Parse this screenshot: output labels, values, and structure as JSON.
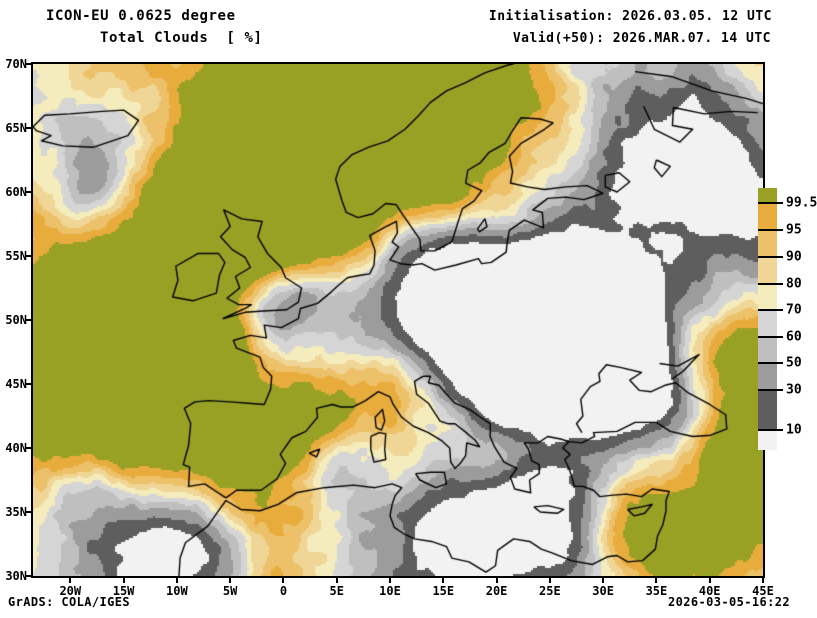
{
  "header": {
    "model_line": "ICON-EU 0.0625 degree",
    "variable_line": "Total Clouds  [ %]",
    "init_line": "Initialisation: 2026.03.05. 12 UTC",
    "valid_line": "Valid(+50): 2026.MAR.07. 14 UTC"
  },
  "map": {
    "lat_labels": [
      "70N",
      "65N",
      "60N",
      "55N",
      "50N",
      "45N",
      "40N",
      "35N",
      "30N"
    ],
    "lon_labels": [
      "20W",
      "15W",
      "10W",
      "5W",
      "0",
      "5E",
      "10E",
      "15E",
      "20E",
      "25E",
      "30E",
      "35E",
      "40E",
      "45E"
    ]
  },
  "colorbar": {
    "boundary_labels": [
      "99.5",
      "95",
      "90",
      "80",
      "70",
      "60",
      "50",
      "30",
      "10"
    ],
    "segment_colors": [
      "#99A125",
      "#E8AC3C",
      "#ECC169",
      "#F0D696",
      "#F4ECBC",
      "#D5D5D5",
      "#BFBFBF",
      "#9C9C9C",
      "#5E5E5E",
      "#F2F2F2"
    ]
  },
  "footer": {
    "left": "GrADS: COLA/IGES",
    "right": "2026-03-05-16:22"
  },
  "colors": {
    "coastline": "#000000",
    "frame": "#000000",
    "background": "#ffffff",
    "overcast_olive": "#99A125"
  },
  "chart_data": {
    "type": "heatmap",
    "title": "Total Clouds [ %]",
    "model": "ICON-EU 0.0625 degree",
    "initialisation": "2026.03.05. 12 UTC",
    "valid": "Valid(+50) 2026.MAR.07. 14 UTC",
    "unit": "%",
    "legend_levels": [
      10,
      30,
      50,
      60,
      70,
      80,
      90,
      95,
      99.5
    ],
    "legend_position": "right",
    "extent": {
      "lon_min": "20W",
      "lon_max": "45E",
      "lat_min": "30N",
      "lat_max": "70N"
    },
    "axis_lon_ticks": [
      "20W",
      "15W",
      "10W",
      "5W",
      "0",
      "5E",
      "10E",
      "15E",
      "20E",
      "25E",
      "30E",
      "35E",
      "40E",
      "45E"
    ],
    "axis_lat_ticks": [
      "70N",
      "65N",
      "60N",
      "55N",
      "50N",
      "45N",
      "40N",
      "35N",
      "30N"
    ],
    "grid": false
  }
}
